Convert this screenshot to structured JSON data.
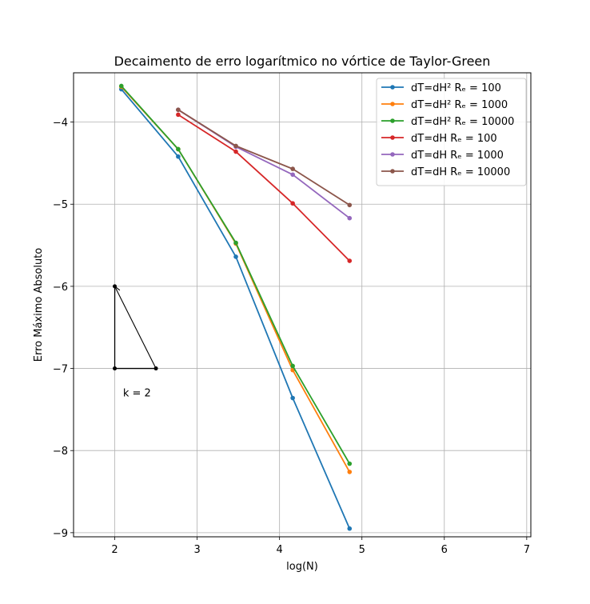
{
  "chart_data": {
    "type": "line",
    "title": "Decaimento de erro logarítmico no vórtice de Taylor-Green",
    "xlabel": "log(N)",
    "ylabel": "Erro Máximo Absoluto",
    "xlim": [
      1.5,
      7.05
    ],
    "ylim": [
      -9.05,
      -3.4
    ],
    "xticks": [
      2,
      3,
      4,
      5,
      6,
      7
    ],
    "yticks": [
      -4,
      -5,
      -6,
      -7,
      -8,
      -9
    ],
    "xtick_labels": [
      "2",
      "3",
      "4",
      "5",
      "6",
      "7"
    ],
    "ytick_labels": [
      "−4",
      "−5",
      "−6",
      "−7",
      "−8",
      "−9"
    ],
    "grid": true,
    "legend_position": "top-right",
    "series": [
      {
        "name": "dT=dH² Rₑ = 100",
        "color": "#1f77b4",
        "x": [
          2.08,
          2.77,
          3.47,
          4.16,
          4.85
        ],
        "y": [
          -3.6,
          -4.42,
          -5.64,
          -7.36,
          -8.95
        ]
      },
      {
        "name": "dT=dH² Rₑ = 1000",
        "color": "#ff7f0e",
        "x": [
          2.08,
          2.77,
          3.47,
          4.16,
          4.85
        ],
        "y": [
          -3.57,
          -4.33,
          -5.48,
          -7.02,
          -8.26
        ]
      },
      {
        "name": "dT=dH² Rₑ = 10000",
        "color": "#2ca02c",
        "x": [
          2.08,
          2.77,
          3.47,
          4.16,
          4.85
        ],
        "y": [
          -3.56,
          -4.33,
          -5.47,
          -6.97,
          -8.16
        ]
      },
      {
        "name": "dT=dH Rₑ = 100",
        "color": "#d62728",
        "x": [
          2.77,
          3.47,
          4.16,
          4.85
        ],
        "y": [
          -3.91,
          -4.36,
          -4.99,
          -5.69
        ]
      },
      {
        "name": "dT=dH Rₑ = 1000",
        "color": "#9467bd",
        "x": [
          2.77,
          3.47,
          4.16,
          4.85
        ],
        "y": [
          -3.85,
          -4.3,
          -4.64,
          -5.17
        ]
      },
      {
        "name": "dT=dH Rₑ = 10000",
        "color": "#8c564b",
        "x": [
          2.77,
          3.47,
          4.16,
          4.85
        ],
        "y": [
          -3.85,
          -4.29,
          -4.57,
          -5.01
        ]
      }
    ],
    "annotation": {
      "text": "k = 2",
      "text_at": [
        2.1,
        -7.3
      ],
      "triangle": [
        [
          2.0,
          -6.0
        ],
        [
          2.0,
          -7.0
        ],
        [
          2.5,
          -7.0
        ]
      ],
      "arrow_from": [
        2.5,
        -7.0
      ],
      "arrow_to": [
        2.0,
        -6.0
      ]
    }
  }
}
